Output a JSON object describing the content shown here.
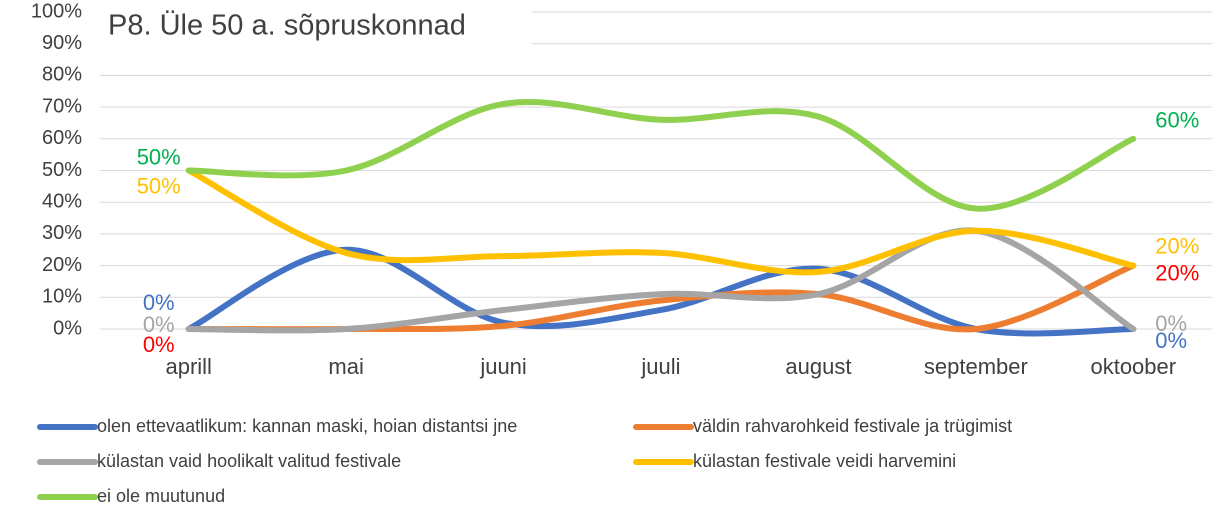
{
  "chart_data": {
    "type": "line",
    "title": "P8. Üle 50 a. sõpruskonnad",
    "categories": [
      "aprill",
      "mai",
      "juuni",
      "juuli",
      "august",
      "september",
      "oktoober"
    ],
    "ylim": [
      0,
      100
    ],
    "yticks": [
      {
        "value": 0,
        "label": "0%"
      },
      {
        "value": 10,
        "label": "10%"
      },
      {
        "value": 20,
        "label": "20%"
      },
      {
        "value": 30,
        "label": "30%"
      },
      {
        "value": 40,
        "label": "40%"
      },
      {
        "value": 50,
        "label": "50%"
      },
      {
        "value": 60,
        "label": "60%"
      },
      {
        "value": 70,
        "label": "70%"
      },
      {
        "value": 80,
        "label": "80%"
      },
      {
        "value": 90,
        "label": "90%"
      },
      {
        "value": 100,
        "label": "100%"
      }
    ],
    "grid": true,
    "smooth": true,
    "legend": "bottom",
    "series": [
      {
        "name": "olen ettevaatlikum: kannan maski, hoian distantsi jne",
        "color": "#4472c4",
        "label_color": "#4472c4",
        "values": [
          0,
          25,
          2,
          6,
          19,
          0,
          0
        ],
        "value_labels": [
          "0%",
          null,
          null,
          null,
          null,
          null,
          "0%"
        ]
      },
      {
        "name": "väldin rahvarohkeid festivale ja trügimist",
        "color": "#ed7d31",
        "label_color": "#ff0000",
        "values": [
          0,
          0,
          1,
          9,
          11,
          0,
          20
        ],
        "value_labels": [
          "0%",
          null,
          null,
          null,
          null,
          null,
          "20%"
        ]
      },
      {
        "name": "külastan vaid hoolikalt valitud festivale",
        "color": "#a5a5a5",
        "label_color": "#a5a5a5",
        "values": [
          0,
          0,
          6,
          11,
          11,
          31,
          0
        ],
        "value_labels": [
          "0%",
          null,
          null,
          null,
          null,
          null,
          "0%"
        ]
      },
      {
        "name": "külastan festivale veidi harvemini",
        "color": "#ffc000",
        "label_color": "#ffc000",
        "values": [
          50,
          24,
          23,
          24,
          18,
          31,
          20
        ],
        "value_labels": [
          "50%",
          null,
          null,
          null,
          null,
          null,
          "20%"
        ]
      },
      {
        "name": "ei ole muutunud",
        "color": "#8fd14f",
        "label_color": "#00b050",
        "values": [
          50,
          50,
          71,
          66,
          67,
          38,
          60
        ],
        "value_labels": [
          "50%",
          null,
          null,
          null,
          null,
          null,
          "60%"
        ]
      }
    ]
  }
}
